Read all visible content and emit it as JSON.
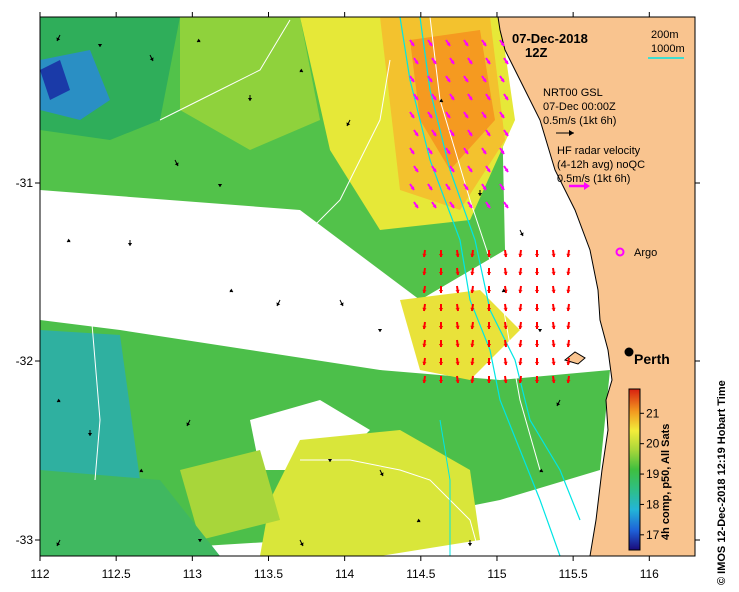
{
  "title": {
    "date": "07-Dec-2018",
    "time": "12Z"
  },
  "scale": {
    "contour1": "200m",
    "contour2": "1000m"
  },
  "model_legend": {
    "line1": "NRT00 GSL",
    "line2": "07-Dec 00:00Z",
    "line3": "0.5m/s (1kt 6h)"
  },
  "radar_legend": {
    "line1": "HF radar velocity",
    "line2": "(4-12h avg) noQC",
    "line3": "0.5m/s (1kt 6h)"
  },
  "argo_label": "Argo",
  "city_label": "Perth",
  "colorbar": {
    "title": "4h comp, p50, All Sats",
    "ticks": [
      "17",
      "18",
      "19",
      "20",
      "21"
    ],
    "range": [
      16.5,
      21.8
    ]
  },
  "side_credit": "© IMOS 12-Dec-2018 12:19 Hobart Time",
  "axes": {
    "x_ticks": [
      "112",
      "112.5",
      "113",
      "113.5",
      "114",
      "114.5",
      "115",
      "115.5",
      "116"
    ],
    "y_ticks": [
      "-31",
      "-32",
      "-33"
    ]
  },
  "colors": {
    "land": "#f9c48f",
    "contour_200": "#00e5e5",
    "contour_1000": "#ffffff",
    "model_arrow": "#000000",
    "radar_arrow_north": "#ff00ff",
    "radar_arrow_south": "#ff0000"
  }
}
